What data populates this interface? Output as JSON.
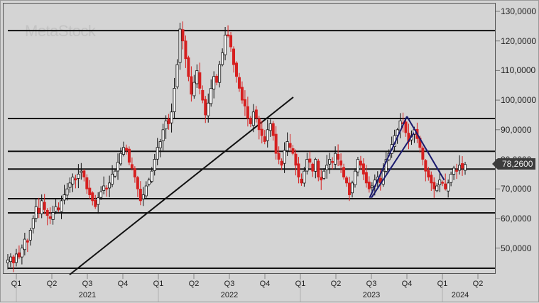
{
  "watermark": "MetaStock",
  "colors": {
    "background": "#d4d4d4",
    "up_candle": "#ffffff",
    "down_candle": "#d62020",
    "level_line": "#111111",
    "trend_line": "#111111",
    "channel": "#1a1a6e",
    "last_price_bg": "#3c3c3c"
  },
  "last_price": "78,2600",
  "chart_data": {
    "type": "candlestick",
    "title": "",
    "xlabel": "",
    "ylabel": "",
    "ylim": [
      41,
      132
    ],
    "y_ticks": [
      "130,0000",
      "120,0000",
      "110,0000",
      "100,0000",
      "90,0000",
      "80,0000",
      "70,0000",
      "60,0000",
      "50,0000"
    ],
    "y_tick_values": [
      130,
      120,
      110,
      100,
      90,
      80,
      70,
      60,
      50
    ],
    "x_quarters": [
      "Q1",
      "Q2",
      "Q3",
      "Q4",
      "Q1",
      "Q2",
      "Q3",
      "Q4",
      "Q1",
      "Q2",
      "Q3",
      "Q4",
      "Q1",
      "Q2"
    ],
    "x_years": [
      {
        "label": "2021",
        "under_quarter": 2
      },
      {
        "label": "2022",
        "under_quarter": 6
      },
      {
        "label": "2023",
        "under_quarter": 10
      },
      {
        "label": "2024",
        "under_quarter": 12.5
      }
    ],
    "grid": false,
    "last_value": 78.26,
    "horizontal_levels": [
      123.5,
      93.8,
      82.7,
      76.7,
      66.7,
      61.9,
      43.2
    ],
    "trend_line": {
      "from": {
        "x_quarter_pos": 1.5,
        "value": 41
      },
      "to": {
        "x_quarter_pos": 7.8,
        "value": 101
      }
    },
    "channel_lines": [
      {
        "from": {
          "q": 9.95,
          "v": 67
        },
        "to": {
          "q": 11.0,
          "v": 94.5
        }
      },
      {
        "from": {
          "q": 10.0,
          "v": 67
        },
        "to": {
          "q": 11.2,
          "v": 89
        }
      },
      {
        "from": {
          "q": 11.0,
          "v": 94.5
        },
        "to": {
          "q": 12.05,
          "v": 73
        }
      }
    ],
    "weekly_closes": [
      46,
      47,
      45,
      48,
      47,
      50,
      53,
      52,
      56,
      60,
      64,
      62,
      66,
      63,
      61,
      60,
      62,
      64,
      63,
      66,
      68,
      70,
      72,
      74,
      73,
      75,
      76,
      74,
      70,
      68,
      66,
      64,
      67,
      69,
      71,
      70,
      72,
      75,
      76,
      79,
      82,
      84,
      83,
      79,
      77,
      74,
      70,
      66,
      68,
      71,
      73,
      76,
      80,
      84,
      86,
      90,
      93,
      92,
      96,
      104,
      112,
      124,
      120,
      114,
      108,
      102,
      106,
      110,
      104,
      100,
      95,
      99,
      104,
      108,
      106,
      112,
      116,
      122,
      122,
      118,
      112,
      108,
      104,
      100,
      98,
      94,
      92,
      96,
      94,
      90,
      88,
      86,
      90,
      92,
      88,
      82,
      80,
      78,
      83,
      86,
      84,
      82,
      78,
      74,
      72,
      76,
      80,
      79,
      76,
      80,
      74,
      73,
      76,
      78,
      80,
      79,
      82,
      80,
      78,
      74,
      72,
      68,
      72,
      76,
      80,
      78,
      75,
      72,
      70,
      71,
      73,
      74,
      72,
      76,
      80,
      82,
      85,
      88,
      90,
      93,
      92,
      89,
      86,
      88,
      90,
      87,
      84,
      80,
      76,
      74,
      72,
      70,
      71,
      73,
      72,
      70,
      72,
      75,
      77,
      76,
      78,
      77,
      78.26
    ]
  }
}
